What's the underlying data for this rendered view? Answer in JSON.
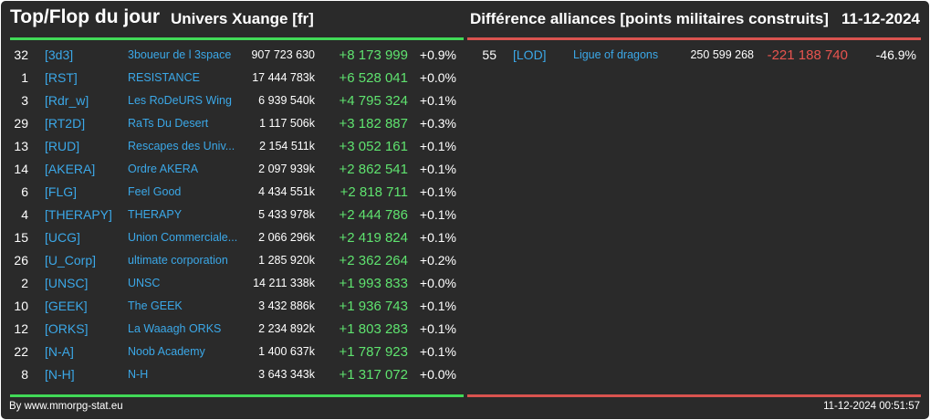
{
  "header": {
    "title": "Top/Flop du jour",
    "subtitle": "Univers Xuange [fr]",
    "chart_title": "Différence alliances [points militaires construits]",
    "date": "11-12-2024"
  },
  "colors": {
    "background": "#2a2a2a",
    "top_bar": "#41d957",
    "flop_bar": "#d9534f",
    "tag": "#3ba8e8",
    "positive": "#5fe36f",
    "negative": "#e8544f"
  },
  "top": [
    {
      "rank": "32",
      "tag": "[3d3]",
      "name": "3boueur de l 3space",
      "points": "907 723 630",
      "diff": "+8 173 999",
      "pct": "+0.9%"
    },
    {
      "rank": "1",
      "tag": "[RST]",
      "name": "RESISTANCE",
      "points": "17 444 783k",
      "diff": "+6 528 041",
      "pct": "+0.0%"
    },
    {
      "rank": "3",
      "tag": "[Rdr_w]",
      "name": "Les RoDeURS Wing",
      "points": "6 939 540k",
      "diff": "+4 795 324",
      "pct": "+0.1%"
    },
    {
      "rank": "29",
      "tag": "[RT2D]",
      "name": "RaTs Du Desert",
      "points": "1 117 506k",
      "diff": "+3 182 887",
      "pct": "+0.3%"
    },
    {
      "rank": "13",
      "tag": "[RUD]",
      "name": "Rescapes des Univ...",
      "points": "2 154 511k",
      "diff": "+3 052 161",
      "pct": "+0.1%"
    },
    {
      "rank": "14",
      "tag": "[AKERA]",
      "name": "Ordre AKERA",
      "points": "2 097 939k",
      "diff": "+2 862 541",
      "pct": "+0.1%"
    },
    {
      "rank": "6",
      "tag": "[FLG]",
      "name": "Feel Good",
      "points": "4 434 551k",
      "diff": "+2 818 711",
      "pct": "+0.1%"
    },
    {
      "rank": "4",
      "tag": "[THERAPY]",
      "name": "THERAPY",
      "points": "5 433 978k",
      "diff": "+2 444 786",
      "pct": "+0.1%"
    },
    {
      "rank": "15",
      "tag": "[UCG]",
      "name": "Union Commerciale...",
      "points": "2 066 296k",
      "diff": "+2 419 824",
      "pct": "+0.1%"
    },
    {
      "rank": "26",
      "tag": "[U_Corp]",
      "name": "ultimate corporation",
      "points": "1 285 920k",
      "diff": "+2 362 264",
      "pct": "+0.2%"
    },
    {
      "rank": "2",
      "tag": "[UNSC]",
      "name": "UNSC",
      "points": "14 211 338k",
      "diff": "+1 993 833",
      "pct": "+0.0%"
    },
    {
      "rank": "10",
      "tag": "[GEEK]",
      "name": "The GEEK",
      "points": "3 432 886k",
      "diff": "+1 936 743",
      "pct": "+0.1%"
    },
    {
      "rank": "12",
      "tag": "[ORKS]",
      "name": "La Waaagh ORKS",
      "points": "2 234 892k",
      "diff": "+1 803 283",
      "pct": "+0.1%"
    },
    {
      "rank": "22",
      "tag": "[N-A]",
      "name": "Noob Academy",
      "points": "1 400 637k",
      "diff": "+1 787 923",
      "pct": "+0.1%"
    },
    {
      "rank": "8",
      "tag": "[N-H]",
      "name": "N-H",
      "points": "3 643 343k",
      "diff": "+1 317 072",
      "pct": "+0.0%"
    }
  ],
  "flop": [
    {
      "rank": "55",
      "tag": "[LOD]",
      "name": "Ligue of dragons",
      "points": "250 599 268",
      "diff": "-221 188 740",
      "pct": "-46.9%"
    }
  ],
  "footer": {
    "credit": "By www.mmorpg-stat.eu",
    "timestamp": "11-12-2024 00:51:57"
  }
}
